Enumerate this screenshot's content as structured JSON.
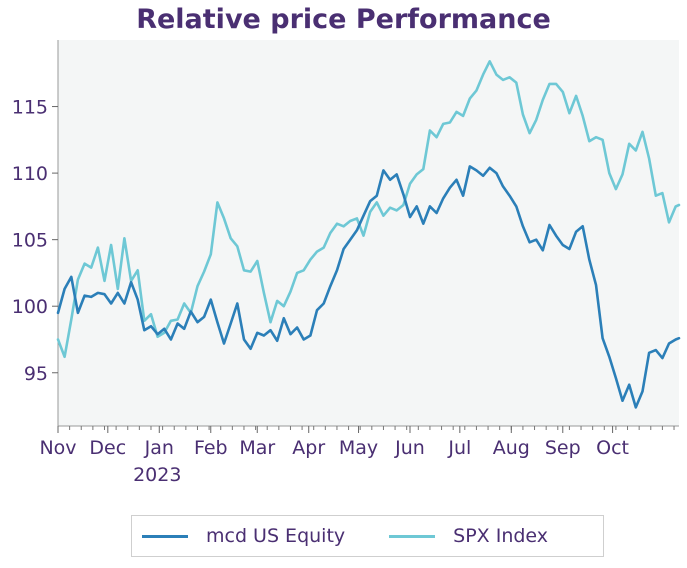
{
  "chart_data": {
    "type": "line",
    "title": "Relative price Performance",
    "xlabel": "",
    "ylabel": "",
    "x_start": "2022-11-01",
    "x_end": "2023-11-10",
    "ylim": [
      91,
      120
    ],
    "yticks": [
      95,
      100,
      105,
      110,
      115
    ],
    "xticks": [
      {
        "label": "Nov",
        "date": "2022-11-01"
      },
      {
        "label": "Dec",
        "date": "2022-12-01"
      },
      {
        "label": "Jan",
        "date": "2023-01-01",
        "year": "2023"
      },
      {
        "label": "Feb",
        "date": "2023-02-01"
      },
      {
        "label": "Mar",
        "date": "2023-03-01"
      },
      {
        "label": "Apr",
        "date": "2023-04-01"
      },
      {
        "label": "May",
        "date": "2023-05-01"
      },
      {
        "label": "Jun",
        "date": "2023-06-01"
      },
      {
        "label": "Jul",
        "date": "2023-07-01"
      },
      {
        "label": "Aug",
        "date": "2023-08-01"
      },
      {
        "label": "Sep",
        "date": "2023-09-01"
      },
      {
        "label": "Oct",
        "date": "2023-10-01"
      }
    ],
    "grid": false,
    "legend_position": "bottom",
    "series": [
      {
        "name": "mcd US Equity",
        "color": "#2b7fb8",
        "x": [
          "2022-11-01",
          "2022-11-05",
          "2022-11-09",
          "2022-11-13",
          "2022-11-17",
          "2022-11-21",
          "2022-11-25",
          "2022-11-29",
          "2022-12-03",
          "2022-12-07",
          "2022-12-11",
          "2022-12-15",
          "2022-12-19",
          "2022-12-23",
          "2022-12-27",
          "2022-12-31",
          "2023-01-04",
          "2023-01-08",
          "2023-01-12",
          "2023-01-16",
          "2023-01-20",
          "2023-01-24",
          "2023-01-28",
          "2023-02-01",
          "2023-02-05",
          "2023-02-09",
          "2023-02-13",
          "2023-02-17",
          "2023-02-21",
          "2023-02-25",
          "2023-03-01",
          "2023-03-05",
          "2023-03-09",
          "2023-03-13",
          "2023-03-17",
          "2023-03-21",
          "2023-03-25",
          "2023-03-29",
          "2023-04-02",
          "2023-04-06",
          "2023-04-10",
          "2023-04-14",
          "2023-04-18",
          "2023-04-22",
          "2023-04-26",
          "2023-04-30",
          "2023-05-04",
          "2023-05-08",
          "2023-05-12",
          "2023-05-16",
          "2023-05-20",
          "2023-05-24",
          "2023-05-28",
          "2023-06-01",
          "2023-06-05",
          "2023-06-09",
          "2023-06-13",
          "2023-06-17",
          "2023-06-21",
          "2023-06-25",
          "2023-06-29",
          "2023-07-03",
          "2023-07-07",
          "2023-07-11",
          "2023-07-15",
          "2023-07-19",
          "2023-07-23",
          "2023-07-27",
          "2023-07-31",
          "2023-08-04",
          "2023-08-08",
          "2023-08-12",
          "2023-08-16",
          "2023-08-20",
          "2023-08-24",
          "2023-08-28",
          "2023-09-01",
          "2023-09-05",
          "2023-09-09",
          "2023-09-13",
          "2023-09-17",
          "2023-09-21",
          "2023-09-25",
          "2023-09-29",
          "2023-10-03",
          "2023-10-07",
          "2023-10-11",
          "2023-10-15",
          "2023-10-19",
          "2023-10-23",
          "2023-10-27",
          "2023-10-31",
          "2023-11-04",
          "2023-11-08",
          "2023-11-10"
        ],
        "values": [
          99.5,
          101.3,
          102.2,
          99.5,
          100.8,
          100.7,
          101.0,
          100.9,
          100.2,
          101.0,
          100.2,
          101.8,
          100.5,
          98.2,
          98.5,
          97.9,
          98.3,
          97.5,
          98.7,
          98.3,
          99.6,
          98.8,
          99.2,
          100.5,
          98.8,
          97.2,
          98.7,
          100.2,
          97.5,
          96.8,
          98.0,
          97.8,
          98.2,
          97.4,
          99.1,
          97.9,
          98.4,
          97.5,
          97.8,
          99.7,
          100.2,
          101.5,
          102.7,
          104.3,
          105.0,
          105.7,
          106.8,
          107.9,
          108.3,
          110.2,
          109.5,
          109.9,
          108.4,
          106.7,
          107.5,
          106.2,
          107.5,
          107.0,
          108.1,
          108.9,
          109.5,
          108.3,
          110.5,
          110.2,
          109.8,
          110.4,
          110.0,
          109.0,
          108.3,
          107.5,
          106.0,
          104.8,
          105.0,
          104.2,
          106.1,
          105.3,
          104.6,
          104.3,
          105.6,
          106.0,
          103.5,
          101.6,
          97.6,
          96.2,
          94.6,
          92.9,
          94.1,
          92.4,
          93.6,
          96.5,
          96.7,
          96.1,
          97.2,
          97.5,
          97.6
        ]
      },
      {
        "name": "SPX Index",
        "color": "#6ec8d5",
        "x": [
          "2022-11-01",
          "2022-11-05",
          "2022-11-09",
          "2022-11-13",
          "2022-11-17",
          "2022-11-21",
          "2022-11-25",
          "2022-11-29",
          "2022-12-03",
          "2022-12-07",
          "2022-12-11",
          "2022-12-15",
          "2022-12-19",
          "2022-12-23",
          "2022-12-27",
          "2022-12-31",
          "2023-01-04",
          "2023-01-08",
          "2023-01-12",
          "2023-01-16",
          "2023-01-20",
          "2023-01-24",
          "2023-01-28",
          "2023-02-01",
          "2023-02-05",
          "2023-02-09",
          "2023-02-13",
          "2023-02-17",
          "2023-02-21",
          "2023-02-25",
          "2023-03-01",
          "2023-03-05",
          "2023-03-09",
          "2023-03-13",
          "2023-03-17",
          "2023-03-21",
          "2023-03-25",
          "2023-03-29",
          "2023-04-02",
          "2023-04-06",
          "2023-04-10",
          "2023-04-14",
          "2023-04-18",
          "2023-04-22",
          "2023-04-26",
          "2023-04-30",
          "2023-05-04",
          "2023-05-08",
          "2023-05-12",
          "2023-05-16",
          "2023-05-20",
          "2023-05-24",
          "2023-05-28",
          "2023-06-01",
          "2023-06-05",
          "2023-06-09",
          "2023-06-13",
          "2023-06-17",
          "2023-06-21",
          "2023-06-25",
          "2023-06-29",
          "2023-07-03",
          "2023-07-07",
          "2023-07-11",
          "2023-07-15",
          "2023-07-19",
          "2023-07-23",
          "2023-07-27",
          "2023-07-31",
          "2023-08-04",
          "2023-08-08",
          "2023-08-12",
          "2023-08-16",
          "2023-08-20",
          "2023-08-24",
          "2023-08-28",
          "2023-09-01",
          "2023-09-05",
          "2023-09-09",
          "2023-09-13",
          "2023-09-17",
          "2023-09-21",
          "2023-09-25",
          "2023-09-29",
          "2023-10-03",
          "2023-10-07",
          "2023-10-11",
          "2023-10-15",
          "2023-10-19",
          "2023-10-23",
          "2023-10-27",
          "2023-10-31",
          "2023-11-04",
          "2023-11-08",
          "2023-11-10"
        ],
        "values": [
          97.5,
          96.2,
          99.0,
          102.0,
          103.2,
          102.9,
          104.4,
          101.9,
          104.6,
          101.3,
          105.1,
          101.9,
          102.7,
          98.9,
          99.4,
          97.7,
          98.0,
          98.9,
          99.0,
          100.2,
          99.5,
          101.5,
          102.6,
          103.9,
          107.8,
          106.6,
          105.1,
          104.5,
          102.7,
          102.6,
          103.4,
          101.0,
          98.8,
          100.4,
          100.0,
          101.1,
          102.5,
          102.7,
          103.5,
          104.1,
          104.4,
          105.5,
          106.2,
          106.0,
          106.4,
          106.6,
          105.3,
          107.1,
          107.8,
          106.8,
          107.4,
          107.2,
          107.6,
          109.2,
          109.9,
          110.3,
          113.2,
          112.7,
          113.7,
          113.8,
          114.6,
          114.3,
          115.6,
          116.2,
          117.4,
          118.4,
          117.4,
          117.0,
          117.2,
          116.8,
          114.4,
          113.0,
          114.0,
          115.5,
          116.7,
          116.7,
          116.1,
          114.5,
          115.8,
          114.3,
          112.4,
          112.7,
          112.5,
          110.0,
          108.8,
          109.9,
          112.2,
          111.7,
          113.1,
          111.1,
          108.3,
          108.5,
          106.3,
          107.5,
          107.6
        ]
      }
    ]
  }
}
